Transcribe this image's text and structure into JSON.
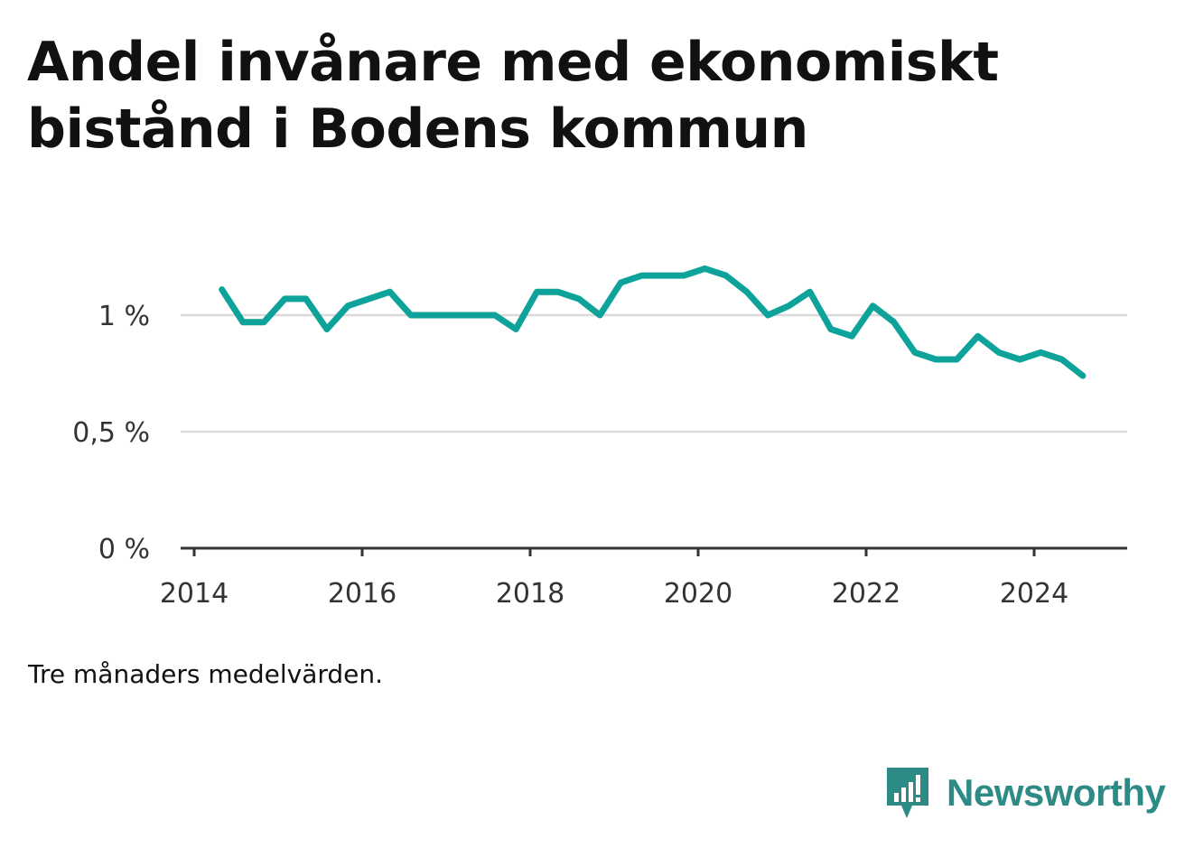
{
  "title": "Andel invånare med ekonomiskt bistånd i Bodens kommun",
  "note": "Tre månaders medelvärden.",
  "brand": {
    "name": "Newsworthy",
    "icon": "newsworthy-logo-icon",
    "color": "#2e8a85"
  },
  "chart_data": {
    "type": "line",
    "title": "Andel invånare med ekonomiskt bistånd i Bodens kommun",
    "xlabel": "",
    "ylabel": "",
    "xlim": [
      2014,
      2025.1
    ],
    "ylim": [
      0,
      1.3
    ],
    "grid": true,
    "legend": "none",
    "line_color": "#0ea39a",
    "y_ticks": [
      {
        "value": 0,
        "label": "0 %"
      },
      {
        "value": 0.5,
        "label": "0,5 %"
      },
      {
        "value": 1,
        "label": "1 %"
      }
    ],
    "x_ticks": [
      {
        "value": 2014,
        "label": "2014"
      },
      {
        "value": 2016,
        "label": "2016"
      },
      {
        "value": 2018,
        "label": "2018"
      },
      {
        "value": 2020,
        "label": "2020"
      },
      {
        "value": 2022,
        "label": "2022"
      },
      {
        "value": 2024,
        "label": "2024"
      }
    ],
    "series": [
      {
        "x": [
          2014.33,
          2014.58,
          2014.83,
          2015.08,
          2015.33,
          2015.58,
          2015.83,
          2016.08,
          2016.33,
          2016.58,
          2016.83,
          2017.08,
          2017.33,
          2017.58,
          2017.83,
          2018.08,
          2018.33,
          2018.58,
          2018.83,
          2019.08,
          2019.33,
          2019.58,
          2019.83,
          2020.08,
          2020.33,
          2020.58,
          2020.83,
          2021.08,
          2021.33,
          2021.58,
          2021.83,
          2022.08,
          2022.33,
          2022.58,
          2022.83,
          2023.08,
          2023.33,
          2023.58,
          2023.83,
          2024.08,
          2024.33,
          2024.58
        ],
        "values": [
          1.11,
          0.97,
          0.97,
          1.07,
          1.07,
          0.94,
          1.04,
          1.07,
          1.1,
          1.0,
          1.0,
          1.0,
          1.0,
          1.0,
          0.94,
          1.1,
          1.1,
          1.07,
          1.0,
          1.14,
          1.17,
          1.17,
          1.17,
          1.2,
          1.17,
          1.1,
          1.0,
          1.04,
          1.1,
          0.94,
          0.91,
          1.04,
          0.97,
          0.84,
          0.81,
          0.81,
          0.91,
          0.84,
          0.81,
          0.84,
          0.81,
          0.74
        ]
      }
    ]
  }
}
